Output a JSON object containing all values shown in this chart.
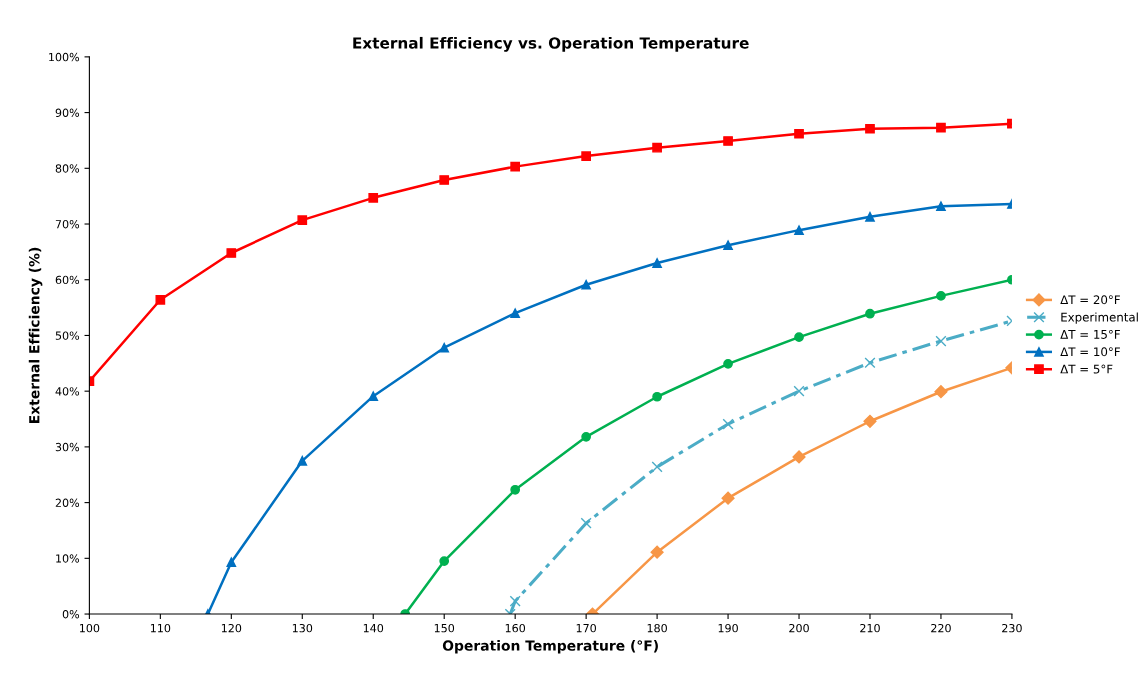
{
  "chart_data": {
    "type": "line",
    "title": "External Efficiency vs. Operation Temperature",
    "xlabel": "Operation Temperature (°F)",
    "ylabel": "External Efficiency (%)",
    "xlim": [
      100,
      230
    ],
    "xticks": [
      100,
      110,
      120,
      130,
      140,
      150,
      160,
      170,
      180,
      190,
      200,
      210,
      220,
      230
    ],
    "ylim": [
      0,
      100
    ],
    "yticks": [
      {
        "value": 0,
        "label": "0%"
      },
      {
        "value": 10,
        "label": "10%"
      },
      {
        "value": 20,
        "label": "20%"
      },
      {
        "value": 30,
        "label": "30%"
      },
      {
        "value": 40,
        "label": "40%"
      },
      {
        "value": 50,
        "label": "50%"
      },
      {
        "value": 60,
        "label": "60%"
      },
      {
        "value": 70,
        "label": "70%"
      },
      {
        "value": 80,
        "label": "80%"
      },
      {
        "value": 90,
        "label": "90%"
      },
      {
        "value": 100,
        "label": "100%"
      }
    ],
    "grid": false,
    "legend": "right",
    "series": [
      {
        "name": "ΔT = 20°F",
        "color": "#f79646",
        "marker": "diamond",
        "line_style": "solid",
        "x": [
          170.9,
          180,
          190,
          200,
          210,
          220,
          230
        ],
        "values": [
          0,
          11.1,
          20.8,
          28.2,
          34.6,
          39.9,
          44.2
        ]
      },
      {
        "name": "Experimental",
        "color": "#4bacc6",
        "marker": "cross",
        "line_style": "dashed",
        "x": [
          159.3,
          160,
          170,
          180,
          190,
          200,
          210,
          220,
          230
        ],
        "values": [
          0,
          2.3,
          16.3,
          26.4,
          34.1,
          40.0,
          45.1,
          49.0,
          52.6
        ]
      },
      {
        "name": "ΔT = 15°F",
        "color": "#00b050",
        "marker": "circle",
        "line_style": "solid",
        "x": [
          144.5,
          150,
          160,
          170,
          180,
          190,
          200,
          210,
          220,
          230
        ],
        "values": [
          0,
          9.5,
          22.3,
          31.8,
          39.0,
          44.9,
          49.7,
          53.9,
          57.1,
          60.0
        ]
      },
      {
        "name": "ΔT = 10°F",
        "color": "#0070c0",
        "marker": "triangle",
        "line_style": "solid",
        "x": [
          116.7,
          120,
          130,
          140,
          150,
          160,
          170,
          180,
          190,
          200,
          210,
          220,
          230
        ],
        "values": [
          0,
          9.3,
          27.5,
          39.1,
          47.8,
          54.0,
          59.1,
          63.0,
          66.2,
          68.9,
          71.3,
          73.2,
          73.6
        ]
      },
      {
        "name": "ΔT = 5°F",
        "color": "#ff0000",
        "marker": "square",
        "line_style": "solid",
        "x": [
          100,
          110,
          120,
          130,
          140,
          150,
          160,
          170,
          180,
          190,
          200,
          210,
          220,
          230
        ],
        "values": [
          41.8,
          56.4,
          64.8,
          70.7,
          74.7,
          77.9,
          80.3,
          82.2,
          83.7,
          84.9,
          86.2,
          87.1,
          87.3,
          88.0
        ]
      }
    ]
  }
}
